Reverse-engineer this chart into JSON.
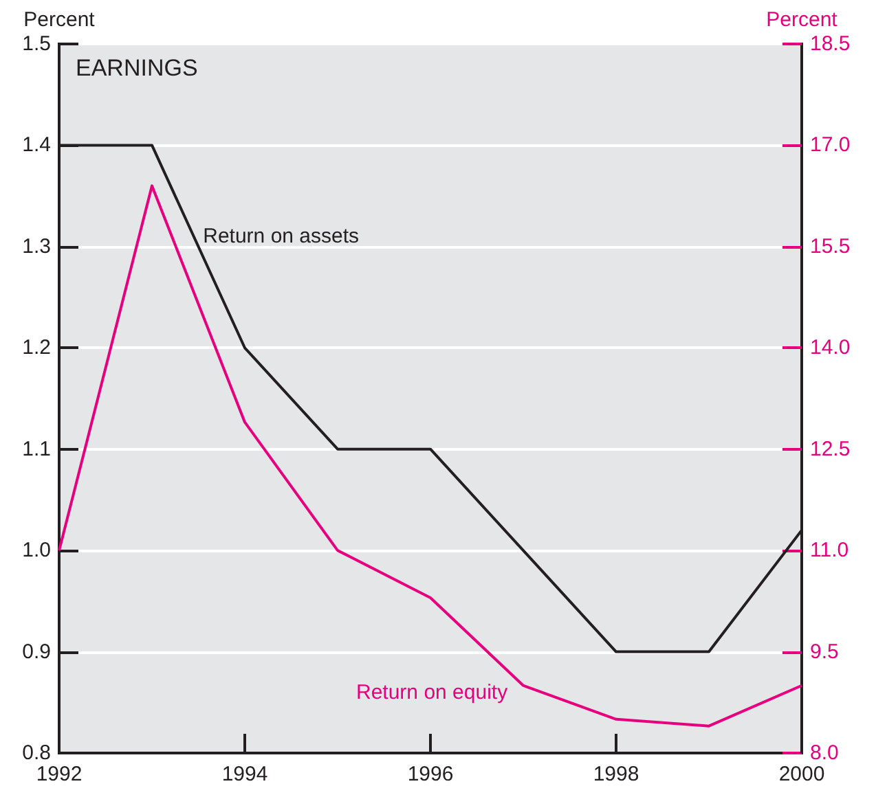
{
  "chart_data": {
    "type": "line",
    "title": "EARNINGS",
    "ylabel": "Percent",
    "y2label": "Percent",
    "x": [
      1992,
      1993,
      1994,
      1995,
      1996,
      1997,
      1998,
      1999,
      2000
    ],
    "xlim": [
      1992,
      2000
    ],
    "xticks": [
      1992,
      1994,
      1996,
      1998,
      2000
    ],
    "ylim": [
      0.8,
      1.5
    ],
    "yticks": [
      0.8,
      0.9,
      {
        "value": 1,
        "label": "1.0"
      },
      1.1,
      1.2,
      1.3,
      1.4,
      1.5
    ],
    "y2lim": [
      8,
      18.5
    ],
    "y2ticks": [
      {
        "value": 8,
        "label": "8.0"
      },
      9.5,
      {
        "value": 11,
        "label": "11.0"
      },
      12.5,
      {
        "value": 14,
        "label": "14.0"
      },
      15.5,
      {
        "value": 17,
        "label": "17.0"
      },
      18.5
    ],
    "series": [
      {
        "name": "Return on assets",
        "color": "#231f20",
        "values": [
          1.4,
          1.4,
          1.2,
          1.1,
          1.1,
          1.0,
          0.9,
          0.9,
          1.02
        ]
      },
      {
        "name": "Return on equity",
        "color": "#e6007e",
        "axis": "y2",
        "values": [
          11.0,
          16.4,
          12.9,
          11.0,
          10.3,
          9.0,
          8.5,
          8.4,
          9.0
        ]
      }
    ],
    "grid": "y",
    "legend": false,
    "marker": "none",
    "line_style": "solid"
  }
}
